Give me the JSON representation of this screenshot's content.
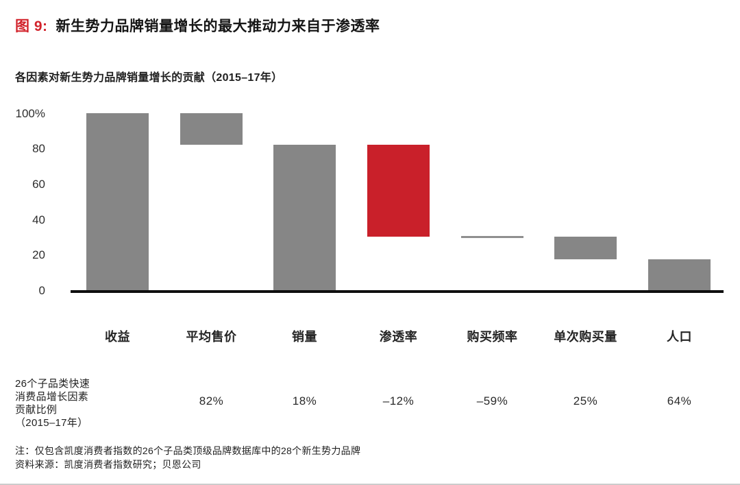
{
  "figure": {
    "label": "图 9:",
    "title": "新生势力品牌销量增长的最大推动力来自于渗透率"
  },
  "chart_data": {
    "type": "bar",
    "subtype": "waterfall",
    "title": "各因素对新生势力品牌销量增长的贡献（2015–17年）",
    "unit": "%",
    "ylim": [
      0,
      100
    ],
    "grid": false,
    "legend": "none",
    "yticks": [
      {
        "label": "100%",
        "value": 100
      },
      {
        "label": "80",
        "value": 80
      },
      {
        "label": "60",
        "value": 60
      },
      {
        "label": "40",
        "value": 40
      },
      {
        "label": "20",
        "value": 20
      },
      {
        "label": "0",
        "value": 0
      }
    ],
    "categories": [
      "收益",
      "平均售价",
      "销量",
      "渗透率",
      "购买频率",
      "单次购买量",
      "人口"
    ],
    "segments": [
      {
        "key": "revenue",
        "category": "收益",
        "start": 0,
        "end": 100,
        "contribution": 100,
        "color": "#868686",
        "style": "bar"
      },
      {
        "key": "avg-selling-price",
        "category": "平均售价",
        "start": 82,
        "end": 100,
        "contribution": 18,
        "color": "#868686",
        "style": "bar"
      },
      {
        "key": "volume",
        "category": "销量",
        "start": 0,
        "end": 82,
        "contribution": 82,
        "color": "#868686",
        "style": "bar"
      },
      {
        "key": "penetration",
        "category": "渗透率",
        "start": 30,
        "end": 82,
        "contribution": 52,
        "color": "#c9202a",
        "style": "bar",
        "highlight": true
      },
      {
        "key": "purchase-frequency",
        "category": "购买频率",
        "start": 30,
        "end": 30,
        "contribution": 0,
        "color": "#8f8f8f",
        "style": "line"
      },
      {
        "key": "volume-per-trip",
        "category": "单次购买量",
        "start": 17.5,
        "end": 30,
        "contribution": 12.5,
        "color": "#868686",
        "style": "bar"
      },
      {
        "key": "population",
        "category": "人口",
        "start": 0,
        "end": 17.5,
        "contribution": 17.5,
        "color": "#868686",
        "style": "bar"
      }
    ]
  },
  "comparison": {
    "label_lines": [
      "26个子品类快速",
      "消费品增长因素",
      "贡献比例",
      "（2015–17年）"
    ],
    "values": [
      "",
      "82%",
      "18%",
      "–12%",
      "–59%",
      "25%",
      "64%"
    ]
  },
  "notes": {
    "note": "注：仅包含凯度消费者指数的26个子品类顶级品牌数据库中的28个新生势力品牌",
    "source": "资料来源：凯度消费者指数研究；贝恩公司"
  },
  "colors": {
    "accent_red": "#d2232c",
    "bar_gray": "#868686",
    "bar_red": "#c9202a",
    "axis_black": "#0f0f0f"
  }
}
